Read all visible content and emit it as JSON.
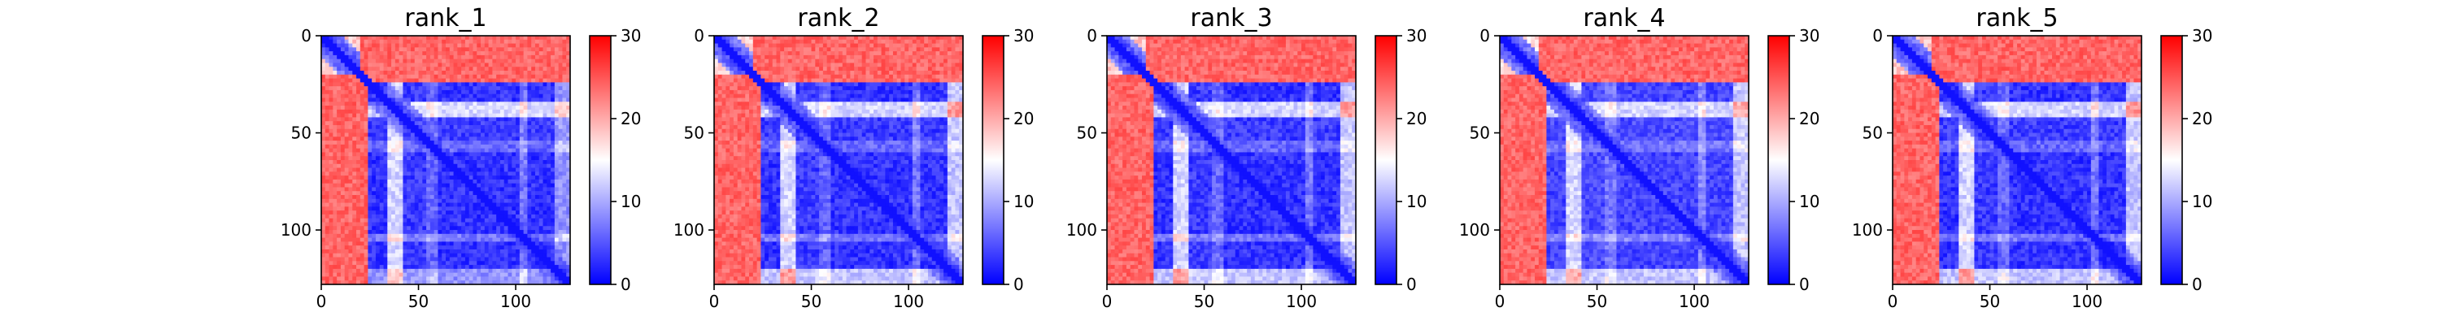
{
  "chart_data": [
    {
      "type": "heatmap",
      "title": "rank_1",
      "x_ticks": [
        0,
        50,
        100
      ],
      "y_ticks": [
        0,
        50,
        100
      ],
      "xlim": [
        0,
        128
      ],
      "ylim": [
        128,
        0
      ],
      "colorbar": {
        "min": 0,
        "max": 30,
        "ticks": [
          0,
          10,
          20,
          30
        ],
        "colors": [
          "#0000ff",
          "#ffffff",
          "#ff0000"
        ]
      },
      "bands": [
        [
          0,
          25,
          18
        ],
        [
          25,
          34,
          3
        ],
        [
          34,
          42,
          22
        ],
        [
          42,
          55,
          4
        ],
        [
          55,
          60,
          9
        ],
        [
          60,
          102,
          3
        ],
        [
          102,
          107,
          11
        ],
        [
          107,
          120,
          3
        ],
        [
          120,
          128,
          14
        ]
      ]
    },
    {
      "type": "heatmap",
      "title": "rank_2",
      "x_ticks": [
        0,
        50,
        100
      ],
      "y_ticks": [
        0,
        50,
        100
      ],
      "xlim": [
        0,
        128
      ],
      "ylim": [
        128,
        0
      ],
      "colorbar": {
        "min": 0,
        "max": 30,
        "ticks": [
          0,
          10,
          20,
          30
        ],
        "colors": [
          "#0000ff",
          "#ffffff",
          "#ff0000"
        ]
      },
      "bands": [
        [
          0,
          25,
          18
        ],
        [
          25,
          34,
          3
        ],
        [
          34,
          42,
          22
        ],
        [
          42,
          55,
          4
        ],
        [
          55,
          60,
          9
        ],
        [
          60,
          102,
          3
        ],
        [
          102,
          107,
          11
        ],
        [
          107,
          120,
          3
        ],
        [
          120,
          128,
          20
        ]
      ]
    },
    {
      "type": "heatmap",
      "title": "rank_3",
      "x_ticks": [
        0,
        50,
        100
      ],
      "y_ticks": [
        0,
        50,
        100
      ],
      "xlim": [
        0,
        128
      ],
      "ylim": [
        128,
        0
      ],
      "colorbar": {
        "min": 0,
        "max": 30,
        "ticks": [
          0,
          10,
          20,
          30
        ],
        "colors": [
          "#0000ff",
          "#ffffff",
          "#ff0000"
        ]
      },
      "bands": [
        [
          0,
          25,
          18
        ],
        [
          25,
          34,
          3
        ],
        [
          34,
          42,
          22
        ],
        [
          42,
          55,
          4
        ],
        [
          55,
          60,
          9
        ],
        [
          60,
          102,
          3
        ],
        [
          102,
          107,
          11
        ],
        [
          107,
          120,
          3
        ],
        [
          120,
          128,
          20
        ]
      ]
    },
    {
      "type": "heatmap",
      "title": "rank_4",
      "x_ticks": [
        0,
        50,
        100
      ],
      "y_ticks": [
        0,
        50,
        100
      ],
      "xlim": [
        0,
        128
      ],
      "ylim": [
        128,
        0
      ],
      "colorbar": {
        "min": 0,
        "max": 30,
        "ticks": [
          0,
          10,
          20,
          30
        ],
        "colors": [
          "#0000ff",
          "#ffffff",
          "#ff0000"
        ]
      },
      "bands": [
        [
          0,
          25,
          17
        ],
        [
          25,
          34,
          4
        ],
        [
          34,
          42,
          21
        ],
        [
          42,
          55,
          5
        ],
        [
          55,
          60,
          10
        ],
        [
          60,
          102,
          4
        ],
        [
          102,
          107,
          12
        ],
        [
          107,
          120,
          4
        ],
        [
          120,
          128,
          19
        ]
      ]
    },
    {
      "type": "heatmap",
      "title": "rank_5",
      "x_ticks": [
        0,
        50,
        100
      ],
      "y_ticks": [
        0,
        50,
        100
      ],
      "xlim": [
        0,
        128
      ],
      "ylim": [
        128,
        0
      ],
      "colorbar": {
        "min": 0,
        "max": 30,
        "ticks": [
          0,
          10,
          20,
          30
        ],
        "colors": [
          "#0000ff",
          "#ffffff",
          "#ff0000"
        ]
      },
      "bands": [
        [
          0,
          25,
          18
        ],
        [
          25,
          34,
          3
        ],
        [
          34,
          42,
          22
        ],
        [
          42,
          55,
          4
        ],
        [
          55,
          60,
          9
        ],
        [
          60,
          102,
          3
        ],
        [
          102,
          107,
          11
        ],
        [
          107,
          120,
          3
        ],
        [
          120,
          128,
          20
        ]
      ]
    }
  ]
}
